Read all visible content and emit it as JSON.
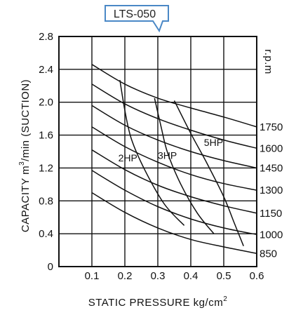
{
  "chart_data": {
    "type": "line",
    "title": "LTS-050",
    "xlabel": "STATIC  PRESSURE  kg/cm",
    "xlabel_sup": "2",
    "ylabel": "CAPACITY  m",
    "ylabel_sup": "3",
    "ylabel_suffix": "/min  (SUCTION)",
    "right_axis_label": "r.p.m",
    "xlim": [
      0,
      0.6
    ],
    "ylim": [
      0,
      2.8
    ],
    "x_ticks": [
      "0.1",
      "0.2",
      "0.3",
      "0.4",
      "0.5",
      "0.6"
    ],
    "y_ticks": [
      "0",
      "0.4",
      "0.8",
      "1.2",
      "1.6",
      "2.0",
      "2.4",
      "2.8"
    ],
    "grid": true,
    "rpm_series": [
      {
        "name": "1750",
        "points": [
          [
            0.1,
            2.46
          ],
          [
            0.2,
            2.22
          ],
          [
            0.3,
            2.05
          ],
          [
            0.4,
            1.93
          ],
          [
            0.5,
            1.82
          ],
          [
            0.6,
            1.7
          ]
        ]
      },
      {
        "name": "1600",
        "points": [
          [
            0.1,
            2.22
          ],
          [
            0.2,
            1.98
          ],
          [
            0.3,
            1.8
          ],
          [
            0.4,
            1.66
          ],
          [
            0.5,
            1.54
          ],
          [
            0.6,
            1.44
          ]
        ]
      },
      {
        "name": "1450",
        "points": [
          [
            0.1,
            1.96
          ],
          [
            0.2,
            1.72
          ],
          [
            0.3,
            1.54
          ],
          [
            0.4,
            1.4
          ],
          [
            0.5,
            1.29
          ],
          [
            0.6,
            1.2
          ]
        ]
      },
      {
        "name": "1300",
        "points": [
          [
            0.1,
            1.7
          ],
          [
            0.2,
            1.46
          ],
          [
            0.3,
            1.27
          ],
          [
            0.4,
            1.12
          ],
          [
            0.5,
            1.01
          ],
          [
            0.6,
            0.93
          ]
        ]
      },
      {
        "name": "1150",
        "points": [
          [
            0.1,
            1.42
          ],
          [
            0.2,
            1.18
          ],
          [
            0.3,
            0.99
          ],
          [
            0.4,
            0.85
          ],
          [
            0.5,
            0.74
          ],
          [
            0.6,
            0.65
          ]
        ]
      },
      {
        "name": "1000",
        "points": [
          [
            0.1,
            1.17
          ],
          [
            0.2,
            0.93
          ],
          [
            0.3,
            0.73
          ],
          [
            0.4,
            0.58
          ],
          [
            0.5,
            0.47
          ],
          [
            0.6,
            0.39
          ]
        ]
      },
      {
        "name": "850",
        "points": [
          [
            0.1,
            0.9
          ],
          [
            0.2,
            0.66
          ],
          [
            0.3,
            0.47
          ],
          [
            0.4,
            0.33
          ],
          [
            0.5,
            0.24
          ],
          [
            0.6,
            0.16
          ]
        ]
      }
    ],
    "hp_series": [
      {
        "name": "2HP",
        "points": [
          [
            0.185,
            2.27
          ],
          [
            0.2,
            1.9
          ],
          [
            0.22,
            1.55
          ],
          [
            0.26,
            1.18
          ],
          [
            0.32,
            0.76
          ],
          [
            0.38,
            0.5
          ]
        ]
      },
      {
        "name": "3HP",
        "points": [
          [
            0.29,
            2.05
          ],
          [
            0.31,
            1.7
          ],
          [
            0.33,
            1.38
          ],
          [
            0.37,
            1.0
          ],
          [
            0.42,
            0.65
          ],
          [
            0.47,
            0.4
          ]
        ]
      },
      {
        "name": "5HP",
        "points": [
          [
            0.35,
            2.02
          ],
          [
            0.4,
            1.62
          ],
          [
            0.45,
            1.25
          ],
          [
            0.5,
            0.85
          ],
          [
            0.53,
            0.55
          ],
          [
            0.56,
            0.25
          ]
        ]
      }
    ],
    "hp_labels": [
      {
        "text": "2HP",
        "x": 0.18,
        "y": 1.28
      },
      {
        "text": "3HP",
        "x": 0.3,
        "y": 1.31
      },
      {
        "text": "5HP",
        "x": 0.44,
        "y": 1.47
      }
    ]
  }
}
